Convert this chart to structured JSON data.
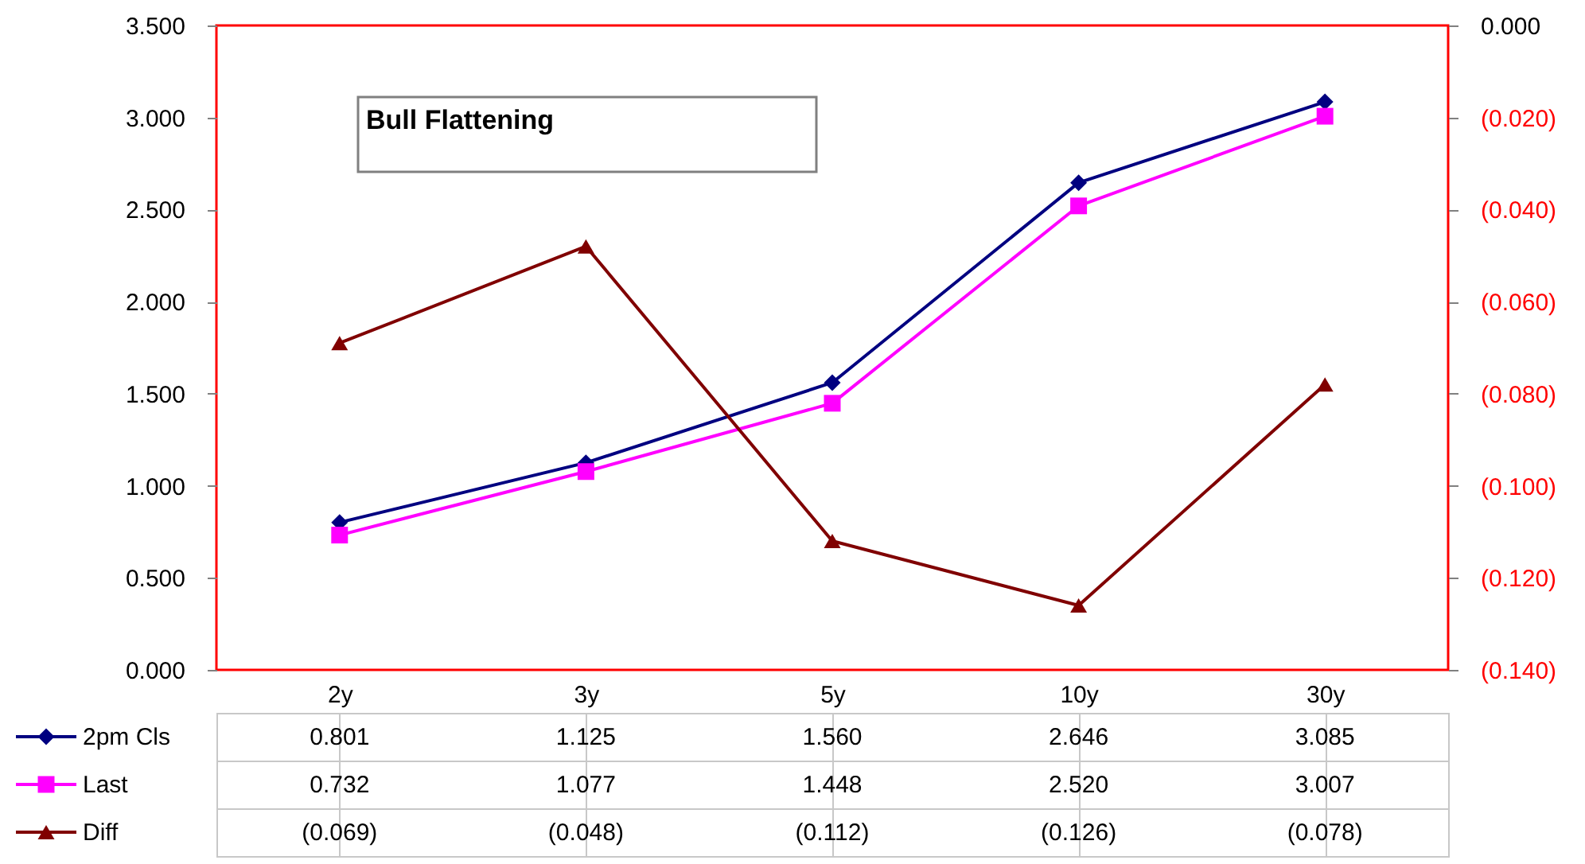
{
  "chart_data": {
    "type": "line",
    "title": "Bull Flattening",
    "categories": [
      "2y",
      "3y",
      "5y",
      "10y",
      "30y"
    ],
    "series": [
      {
        "name": "2pm Cls",
        "color": "#000080",
        "marker": "diamond",
        "values": [
          0.801,
          1.125,
          1.56,
          2.646,
          3.085
        ],
        "value_labels": [
          "0.801",
          "1.125",
          "1.560",
          "2.646",
          "3.085"
        ]
      },
      {
        "name": "Last",
        "color": "#ff00ff",
        "marker": "square",
        "values": [
          0.732,
          1.077,
          1.448,
          2.52,
          3.007
        ],
        "value_labels": [
          "0.732",
          "1.077",
          "1.448",
          "2.520",
          "3.007"
        ]
      },
      {
        "name": "Diff",
        "color": "#800000",
        "marker": "triangle",
        "axis": "y2",
        "values": [
          -0.069,
          -0.048,
          -0.112,
          -0.126,
          -0.078
        ],
        "value_labels": [
          "(0.069)",
          "(0.048)",
          "(0.112)",
          "(0.126)",
          "(0.078)"
        ]
      }
    ],
    "ylim": [
      0,
      3.5
    ],
    "yticks": [
      {
        "value": 0,
        "label": "0.000"
      },
      {
        "value": 0.5,
        "label": "0.500"
      },
      {
        "value": 1,
        "label": "1.000"
      },
      {
        "value": 1.5,
        "label": "1.500"
      },
      {
        "value": 2,
        "label": "2.000"
      },
      {
        "value": 2.5,
        "label": "2.500"
      },
      {
        "value": 3,
        "label": "3.000"
      },
      {
        "value": 3.5,
        "label": "3.500"
      }
    ],
    "y2lim": [
      -0.14,
      0
    ],
    "y2ticks": [
      {
        "value": -0.14,
        "label": "(0.140)"
      },
      {
        "value": -0.12,
        "label": "(0.120)"
      },
      {
        "value": -0.1,
        "label": "(0.100)"
      },
      {
        "value": -0.08,
        "label": "(0.080)"
      },
      {
        "value": -0.06,
        "label": "(0.060)"
      },
      {
        "value": -0.04,
        "label": "(0.040)"
      },
      {
        "value": -0.02,
        "label": "(0.020)"
      },
      {
        "value": 0,
        "label": "0.000"
      }
    ],
    "legend": "bottom left"
  }
}
